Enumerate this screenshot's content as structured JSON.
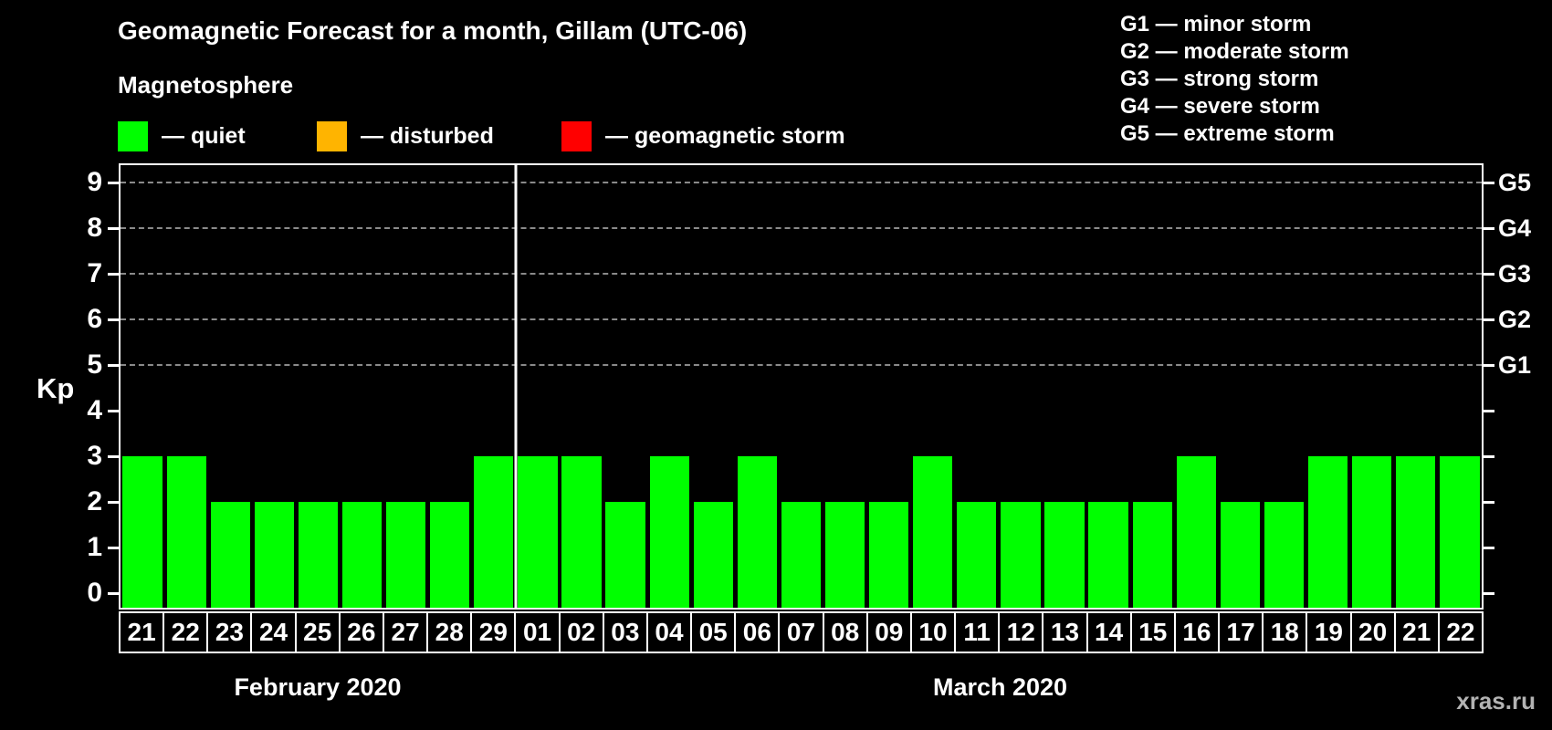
{
  "title": "Geomagnetic Forecast for a month, Gillam (UTC-06)",
  "subtitle": "Magnetosphere",
  "colors": {
    "quiet": "#00ff00",
    "disturbed": "#ffb400",
    "storm": "#ff0000",
    "background": "#000000",
    "text": "#ffffff",
    "grid": "#8a8a8a",
    "watermark": "#b3b3b3"
  },
  "legend": [
    {
      "key": "quiet",
      "label": "— quiet"
    },
    {
      "key": "disturbed",
      "label": "— disturbed"
    },
    {
      "key": "storm",
      "label": "— geomagnetic storm"
    }
  ],
  "storm_scale_legend": [
    "G1 — minor storm",
    "G2 — moderate storm",
    "G3 — strong storm",
    "G4 — severe storm",
    "G5 — extreme storm"
  ],
  "watermark": "xras.ru",
  "chart_data": {
    "type": "bar",
    "title": "Geomagnetic Forecast for a month, Gillam (UTC-06)",
    "ylabel": "Kp",
    "ylim": [
      0,
      9
    ],
    "y_ticks": [
      0,
      1,
      2,
      3,
      4,
      5,
      6,
      7,
      8,
      9
    ],
    "grid_levels": [
      5,
      6,
      7,
      8,
      9
    ],
    "grid_on": true,
    "legend_position": "top",
    "right_axis_labels": [
      {
        "text": "G1",
        "kp": 5
      },
      {
        "text": "G2",
        "kp": 6
      },
      {
        "text": "G3",
        "kp": 7
      },
      {
        "text": "G4",
        "kp": 8
      },
      {
        "text": "G5",
        "kp": 9
      }
    ],
    "months": [
      {
        "label": "February 2020",
        "days": [
          "21",
          "22",
          "23",
          "24",
          "25",
          "26",
          "27",
          "28",
          "29"
        ],
        "values": [
          3,
          3,
          2,
          2,
          2,
          2,
          2,
          2,
          3
        ]
      },
      {
        "label": "March 2020",
        "days": [
          "01",
          "02",
          "03",
          "04",
          "05",
          "06",
          "07",
          "08",
          "09",
          "10",
          "11",
          "12",
          "13",
          "14",
          "15",
          "16",
          "17",
          "18",
          "19",
          "20",
          "21",
          "22"
        ],
        "values": [
          3,
          3,
          2,
          3,
          2,
          3,
          2,
          2,
          2,
          3,
          2,
          2,
          2,
          2,
          2,
          3,
          2,
          2,
          3,
          3,
          3,
          3
        ]
      }
    ]
  }
}
